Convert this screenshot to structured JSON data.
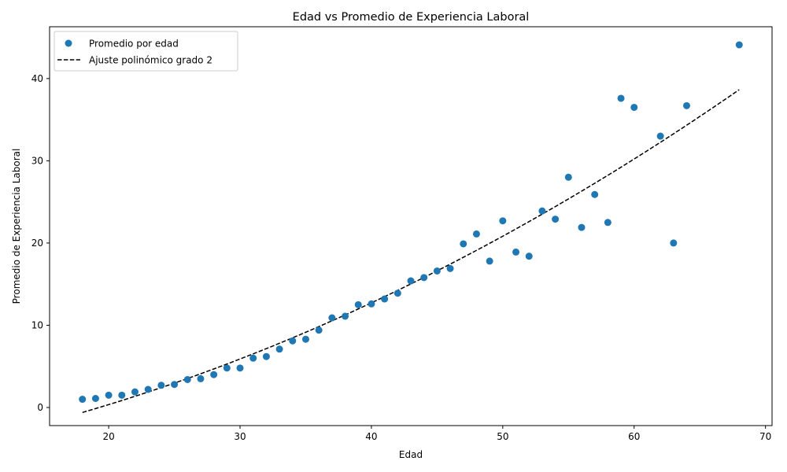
{
  "chart_data": {
    "type": "scatter",
    "title": "Edad vs Promedio de Experiencia Laboral",
    "xlabel": "Edad",
    "ylabel": "Promedio de Experiencia Laboral",
    "xlim": [
      15.5,
      70.5
    ],
    "ylim": [
      -2.2,
      46.3
    ],
    "xticks": [
      20,
      30,
      40,
      50,
      60,
      70
    ],
    "yticks": [
      0,
      10,
      20,
      30,
      40
    ],
    "grid": false,
    "legend_position": "upper-left",
    "series": [
      {
        "name": "Promedio por edad",
        "kind": "scatter",
        "color": "#1f77b4",
        "points": [
          [
            18,
            1.0
          ],
          [
            19,
            1.1
          ],
          [
            20,
            1.5
          ],
          [
            21,
            1.5
          ],
          [
            22,
            1.9
          ],
          [
            23,
            2.2
          ],
          [
            24,
            2.7
          ],
          [
            25,
            2.8
          ],
          [
            26,
            3.4
          ],
          [
            27,
            3.5
          ],
          [
            28,
            4.0
          ],
          [
            29,
            4.8
          ],
          [
            30,
            4.8
          ],
          [
            31,
            6.0
          ],
          [
            32,
            6.2
          ],
          [
            33,
            7.1
          ],
          [
            34,
            8.1
          ],
          [
            35,
            8.3
          ],
          [
            36,
            9.4
          ],
          [
            37,
            10.9
          ],
          [
            38,
            11.1
          ],
          [
            39,
            12.5
          ],
          [
            40,
            12.6
          ],
          [
            41,
            13.2
          ],
          [
            42,
            13.9
          ],
          [
            43,
            15.4
          ],
          [
            44,
            15.8
          ],
          [
            45,
            16.6
          ],
          [
            46,
            16.9
          ],
          [
            47,
            19.9
          ],
          [
            48,
            21.1
          ],
          [
            49,
            17.8
          ],
          [
            50,
            22.7
          ],
          [
            51,
            18.9
          ],
          [
            52,
            18.4
          ],
          [
            53,
            23.9
          ],
          [
            54,
            22.9
          ],
          [
            55,
            28.0
          ],
          [
            56,
            21.9
          ],
          [
            57,
            25.9
          ],
          [
            58,
            22.5
          ],
          [
            59,
            37.6
          ],
          [
            60,
            36.5
          ],
          [
            62,
            33.0
          ],
          [
            63,
            20.0
          ],
          [
            64,
            36.7
          ],
          [
            68,
            44.1
          ]
        ]
      },
      {
        "name": "Ajuste polinómico grado 2",
        "kind": "fit-line",
        "color": "#000000",
        "degree": 2,
        "x_range": [
          18,
          68
        ],
        "coefficients": [
          0.0064,
          0.2346,
          -6.9
        ]
      }
    ]
  }
}
